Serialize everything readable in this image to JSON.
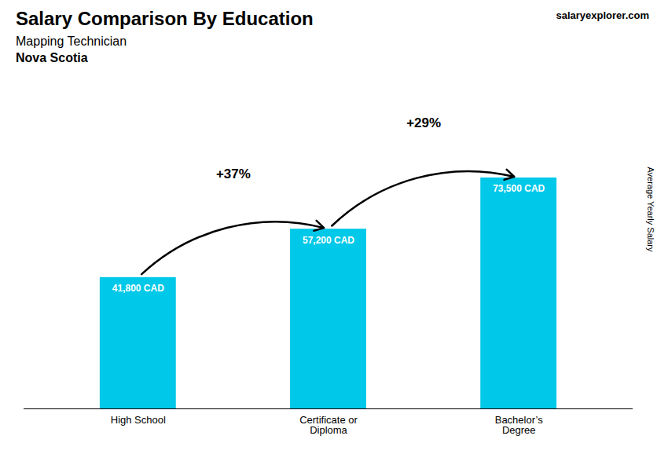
{
  "chart_data": {
    "type": "bar",
    "title": "Salary Comparison By Education",
    "subtitle": [
      "Mapping Technician",
      "Nova Scotia"
    ],
    "watermark": "salaryexplorer.com",
    "ylabel": "Average Yearly Salary",
    "categories": [
      "High School",
      "Certificate or\nDiploma",
      "Bachelor’s\nDegree"
    ],
    "values": [
      41800,
      57200,
      73500
    ],
    "value_labels": [
      "41,800 CAD",
      "57,200 CAD",
      "73,500 CAD"
    ],
    "annotations": [
      "+37%",
      "+29%"
    ],
    "color": "#00c8e8",
    "ylim": [
      0,
      100000
    ],
    "data_labels": true,
    "tick_labels": "x"
  }
}
